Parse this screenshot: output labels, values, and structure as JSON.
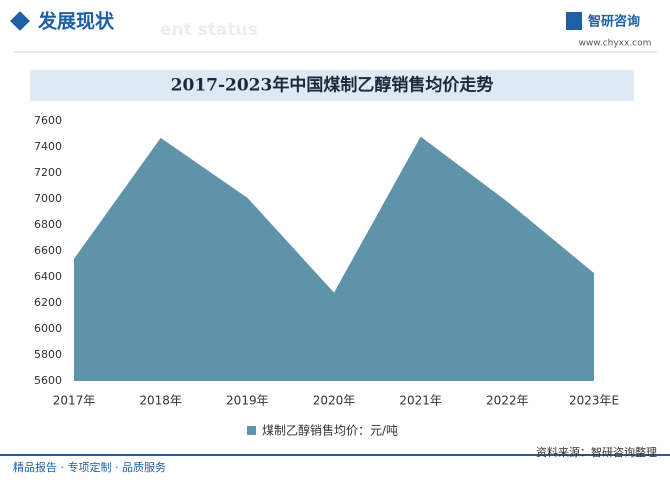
{
  "header": {
    "title": "发展现状",
    "watermark": "ent status"
  },
  "logo": {
    "name": "智研咨询",
    "url": "www.chyxx.com"
  },
  "chart_data": {
    "type": "area",
    "title": "2017-2023年中国煤制乙醇销售均价走势",
    "categories": [
      "2017年",
      "2018年",
      "2019年",
      "2020年",
      "2021年",
      "2022年",
      "2023年E"
    ],
    "series": [
      {
        "name": "煤制乙醇销售均价：元/吨",
        "color": "#5f93a9",
        "values": [
          6540,
          7470,
          7010,
          6280,
          7480,
          6980,
          6430
        ]
      }
    ],
    "ylim": [
      5600,
      7600
    ],
    "yticks": [
      5600,
      5800,
      6000,
      6200,
      6400,
      6600,
      6800,
      7000,
      7200,
      7400,
      7600
    ],
    "grid": false,
    "legend": "bottom"
  },
  "footer": {
    "left": "精品报告 · 专项定制 · 品质服务",
    "source": "资料来源：智研咨询整理"
  }
}
